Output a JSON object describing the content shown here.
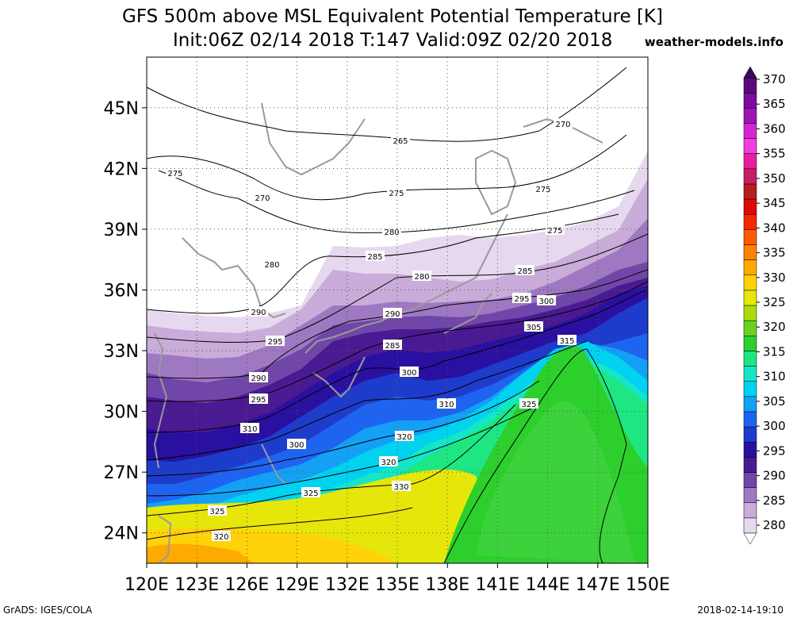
{
  "header": {
    "title_line1": "GFS 500m above MSL Equivalent Potential Temperature [K]",
    "title_line2": "Init:06Z 02/14 2018 T:147 Valid:09Z 02/20 2018",
    "site": "weather-models.info"
  },
  "footer": {
    "left": "GrADS: IGES/COLA",
    "right": "2018-02-14-19:10"
  },
  "map": {
    "lat_labels": [
      "45N",
      "42N",
      "39N",
      "36N",
      "33N",
      "30N",
      "27N",
      "24N"
    ],
    "lat_values": [
      45,
      42,
      39,
      36,
      33,
      30,
      27,
      24
    ],
    "lon_labels": [
      "120E",
      "123E",
      "126E",
      "129E",
      "132E",
      "135E",
      "138E",
      "141E",
      "144E",
      "147E",
      "150E"
    ],
    "lon_values": [
      120,
      123,
      126,
      129,
      132,
      135,
      138,
      141,
      144,
      147,
      150
    ],
    "lat_range": [
      22.5,
      47.5
    ],
    "lon_range": [
      120,
      150
    ],
    "contour_labels": [
      "270",
      "265",
      "275",
      "270",
      "275",
      "275",
      "280",
      "275",
      "280",
      "285",
      "280",
      "285",
      "290",
      "295",
      "290",
      "295",
      "300",
      "285",
      "290",
      "295",
      "300",
      "305",
      "310",
      "300",
      "310",
      "315",
      "320",
      "320",
      "325",
      "325",
      "330",
      "325",
      "320"
    ]
  },
  "colorbar": {
    "levels": [
      280,
      285,
      290,
      295,
      300,
      305,
      310,
      315,
      320,
      325,
      330,
      335,
      340,
      345,
      350,
      355,
      360,
      365,
      370
    ],
    "labels": [
      "280",
      "285",
      "290",
      "295",
      "300",
      "305",
      "310",
      "315",
      "320",
      "325",
      "330",
      "335",
      "340",
      "345",
      "350",
      "355",
      "360",
      "365",
      "370"
    ],
    "colors": [
      "#e6d8ee",
      "#c9acd9",
      "#9f78c2",
      "#7047a8",
      "#4a1a92",
      "#2a10a0",
      "#1e3ccc",
      "#1e64f0",
      "#14a0f5",
      "#00d2f0",
      "#14e6c8",
      "#1ee682",
      "#2ccf2c",
      "#6ad21e",
      "#aadc0a",
      "#e6e60a",
      "#ffd20a",
      "#ffaa00",
      "#ff8200",
      "#ff5a00",
      "#f52800",
      "#dc0a0a",
      "#b41e1e",
      "#c81e64",
      "#e61ea0",
      "#f53cdc",
      "#d228d2",
      "#a014b4",
      "#7a0aa0",
      "#5a0a78"
    ]
  },
  "chart_data": {
    "type": "heatmap",
    "title": "GFS 500m above MSL Equivalent Potential Temperature [K]",
    "xlabel": "",
    "ylabel": "",
    "xlim": [
      120,
      150
    ],
    "ylim": [
      22.5,
      47.5
    ],
    "units": "K",
    "contour_interval": 5,
    "colorbar_range": [
      280,
      370
    ]
  }
}
